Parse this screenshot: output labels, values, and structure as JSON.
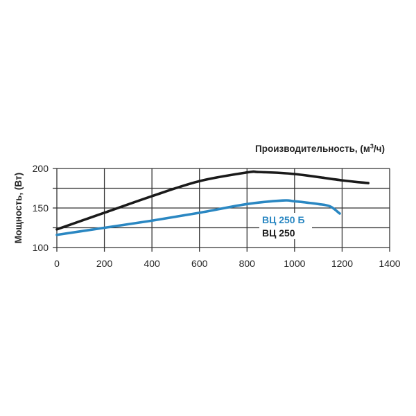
{
  "chart_data": {
    "type": "line",
    "title": "",
    "xlabel": "Производительность, (м³/ч)",
    "xlabel_parts": {
      "main": "Производительность, (м",
      "sup": "3",
      "tail": "/ч)"
    },
    "ylabel": "Мощность, (Вт)",
    "xlim": [
      0,
      1400
    ],
    "ylim": [
      100,
      200
    ],
    "x_ticks": [
      0,
      200,
      400,
      600,
      800,
      1000,
      1200,
      1400
    ],
    "y_ticks": [
      100,
      150,
      200
    ],
    "y_minor_grid": [
      125,
      175
    ],
    "grid": true,
    "legend_position": "inside, lower right of center",
    "series": [
      {
        "name": "ВЦ 250 Б",
        "color": "#2a87c2",
        "x": [
          0,
          200,
          400,
          600,
          800,
          950,
          1000,
          1100,
          1150,
          1190
        ],
        "y": [
          116,
          125,
          134,
          144,
          155,
          159.5,
          158.5,
          155,
          152,
          143
        ]
      },
      {
        "name": "ВЦ 250",
        "color": "#1a1a1a",
        "x": [
          0,
          200,
          400,
          600,
          800,
          850,
          1000,
          1200,
          1310
        ],
        "y": [
          123,
          144,
          165,
          184,
          195,
          195.5,
          193,
          185,
          181.5
        ]
      }
    ]
  }
}
